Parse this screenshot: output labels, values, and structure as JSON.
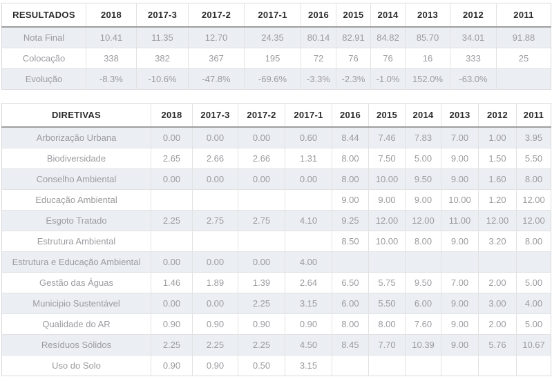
{
  "colors": {
    "stripe_row_bg": "#ebeef3",
    "header_text": "#2b2b2b",
    "cell_text": "#9b9ba0",
    "grid_border": "#e2e2e2",
    "header_underline": "#9e9e9e",
    "outer_border": "#d9d9d9"
  },
  "resultados_table": {
    "header": [
      "RESULTADOS",
      "2018",
      "2017-3",
      "2017-2",
      "2017-1",
      "2016",
      "2015",
      "2014",
      "2013",
      "2012",
      "2011"
    ],
    "rows": [
      {
        "label": "Nota Final",
        "values": [
          "10.41",
          "11.35",
          "12.70",
          "24.35",
          "80.14",
          "82.91",
          "84.82",
          "85.70",
          "34.01",
          "91.88"
        ]
      },
      {
        "label": "Colocação",
        "values": [
          "338",
          "382",
          "367",
          "195",
          "72",
          "76",
          "76",
          "16",
          "333",
          "25"
        ]
      },
      {
        "label": "Evolução",
        "values": [
          "-8.3%",
          "-10.6%",
          "-47.8%",
          "-69.6%",
          "-3.3%",
          "-2.3%",
          "-1.0%",
          "152.0%",
          "-63.0%",
          ""
        ]
      }
    ]
  },
  "diretivas_table": {
    "header": [
      "DIRETIVAS",
      "2018",
      "2017-3",
      "2017-2",
      "2017-1",
      "2016",
      "2015",
      "2014",
      "2013",
      "2012",
      "2011"
    ],
    "rows": [
      {
        "label": "Arborização Urbana",
        "values": [
          "0.00",
          "0.00",
          "0.00",
          "0.60",
          "8.44",
          "7.46",
          "7.83",
          "7.00",
          "1.00",
          "3.95"
        ]
      },
      {
        "label": "Biodiversidade",
        "values": [
          "2.65",
          "2.66",
          "2.66",
          "1.31",
          "8.00",
          "7.50",
          "5.00",
          "9.00",
          "1.50",
          "5.50"
        ]
      },
      {
        "label": "Conselho Ambiental",
        "values": [
          "0.00",
          "0.00",
          "0.00",
          "0.00",
          "8.00",
          "10.00",
          "9.50",
          "9.00",
          "1.60",
          "8.00"
        ]
      },
      {
        "label": "Educação Ambiental",
        "values": [
          "",
          "",
          "",
          "",
          "9.00",
          "9.00",
          "9.00",
          "10.00",
          "1.20",
          "12.00"
        ]
      },
      {
        "label": "Esgoto Tratado",
        "values": [
          "2.25",
          "2.75",
          "2.75",
          "4.10",
          "9.25",
          "12.00",
          "12.00",
          "11.00",
          "12.00",
          "12.00"
        ]
      },
      {
        "label": "Estrutura Ambiental",
        "values": [
          "",
          "",
          "",
          "",
          "8.50",
          "10.00",
          "8.00",
          "9.00",
          "3.20",
          "8.00"
        ]
      },
      {
        "label": "Estrutura e Educação Ambiental",
        "values": [
          "0.00",
          "0.00",
          "0.00",
          "4.00",
          "",
          "",
          "",
          "",
          "",
          ""
        ]
      },
      {
        "label": "Gestão das Águas",
        "values": [
          "1.46",
          "1.89",
          "1.39",
          "2.64",
          "6.50",
          "5.75",
          "9.50",
          "7.00",
          "2.00",
          "5.00"
        ]
      },
      {
        "label": "Municipio Sustentável",
        "values": [
          "0.00",
          "0.00",
          "2.25",
          "3.15",
          "6.00",
          "5.50",
          "6.00",
          "9.00",
          "3.00",
          "4.00"
        ]
      },
      {
        "label": "Qualidade do AR",
        "values": [
          "0.90",
          "0.90",
          "0.90",
          "0.90",
          "8.00",
          "8.00",
          "7.60",
          "9.00",
          "2.00",
          "5.00"
        ]
      },
      {
        "label": "Resíduos Sólidos",
        "values": [
          "2.25",
          "2.25",
          "2.25",
          "4.50",
          "8.45",
          "7.70",
          "10.39",
          "9.00",
          "5.76",
          "10.67"
        ]
      },
      {
        "label": "Uso do Solo",
        "values": [
          "0.90",
          "0.90",
          "0.50",
          "3.15",
          "",
          "",
          "",
          "",
          "",
          ""
        ]
      }
    ]
  }
}
